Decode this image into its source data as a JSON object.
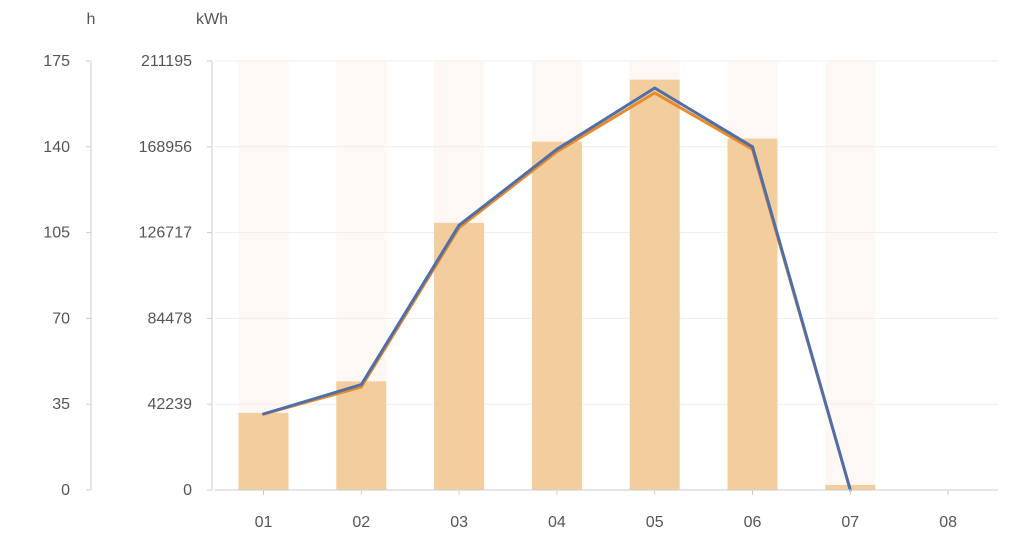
{
  "chart_data": {
    "type": "bar",
    "categories": [
      "01",
      "02",
      "03",
      "04",
      "05",
      "06",
      "07",
      "08"
    ],
    "left_axis": {
      "unit": "h",
      "ticks": [
        "175",
        "140",
        "105",
        "70",
        "35",
        "0"
      ],
      "ylim": [
        0,
        175
      ]
    },
    "right_axis": {
      "unit": "kWh",
      "ticks": [
        "211195",
        "168956",
        "126717",
        "84478",
        "42239",
        "0"
      ],
      "ylim": [
        0,
        211195
      ]
    },
    "series": [
      {
        "type": "bar",
        "axis": "kWh",
        "values": [
          38000,
          53500,
          131500,
          171500,
          202000,
          173000,
          2500,
          0
        ]
      },
      {
        "type": "line",
        "axis": "h",
        "values": [
          31,
          42,
          107,
          138,
          162,
          139,
          0,
          null
        ]
      },
      {
        "type": "line",
        "axis": "h",
        "values": [
          31,
          43,
          108,
          139,
          164,
          140,
          0,
          null
        ]
      }
    ],
    "grid": true,
    "background_band_color": "#fdf8f4"
  },
  "colors": {
    "bar": "#f2cd9d",
    "line_orange": "#e8892a",
    "line_blue": "#4f6fa8",
    "grid": "#eeeeee",
    "axis": "#cccccc",
    "text": "#555555"
  }
}
